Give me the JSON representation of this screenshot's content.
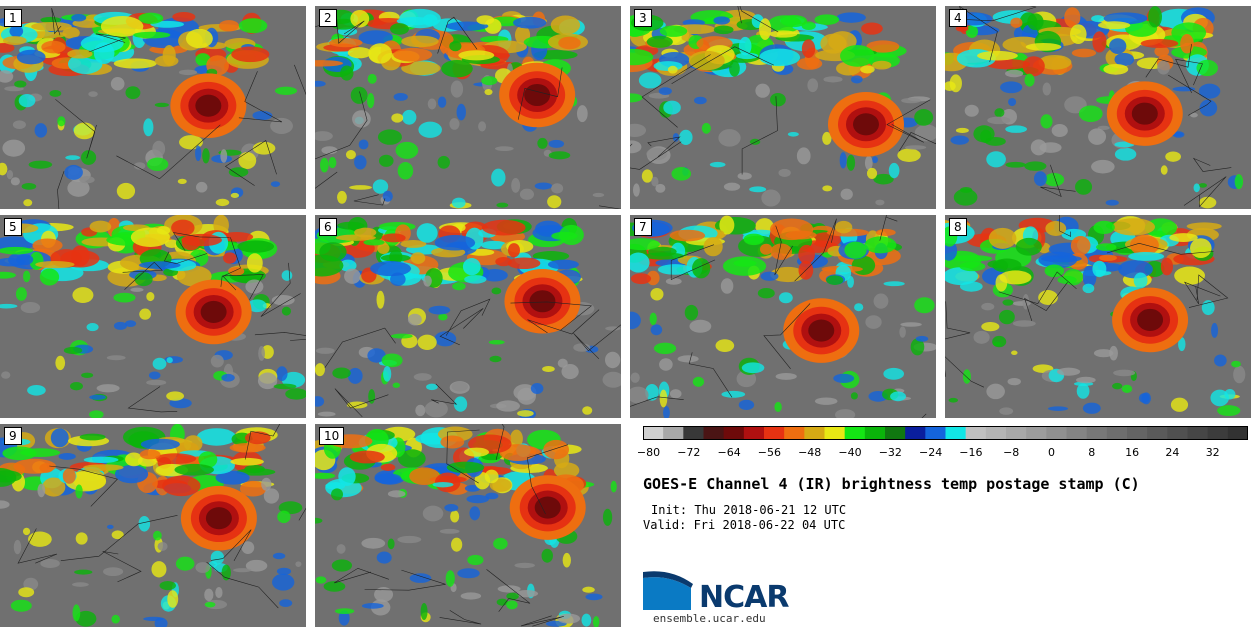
{
  "panels": [
    {
      "label": "1"
    },
    {
      "label": "2"
    },
    {
      "label": "3"
    },
    {
      "label": "4"
    },
    {
      "label": "5"
    },
    {
      "label": "6"
    },
    {
      "label": "7"
    },
    {
      "label": "8"
    },
    {
      "label": "9"
    },
    {
      "label": "10"
    }
  ],
  "colorbar": {
    "colors": [
      "#d0d0d0",
      "#a8a8a8",
      "#383838",
      "#4a1414",
      "#6e0a0a",
      "#b01010",
      "#e63212",
      "#ee6e10",
      "#d6aa14",
      "#e8e814",
      "#14e614",
      "#0ab40a",
      "#107810",
      "#0a1e9e",
      "#1464dc",
      "#12e6e6",
      "#c0c0c0",
      "#b4b4b4",
      "#a8a8a8",
      "#9c9c9c",
      "#909090",
      "#848484",
      "#787878",
      "#6e6e6e",
      "#646464",
      "#5a5a5a",
      "#505050",
      "#464646",
      "#3c3c3c",
      "#323232"
    ],
    "ticks": [
      "−80",
      "−72",
      "−64",
      "−56",
      "−48",
      "−40",
      "−32",
      "−24",
      "−16",
      "−8",
      "0",
      "8",
      "16",
      "24",
      "32"
    ]
  },
  "title": "GOES-E Channel 4 (IR) brightness temp postage stamp (C)",
  "init": "Init: Thu 2018-06-21 12 UTC",
  "valid": "Valid: Fri 2018-06-22 04 UTC",
  "logo": {
    "text": "NCAR",
    "site": "ensemble.ucar.edu"
  }
}
